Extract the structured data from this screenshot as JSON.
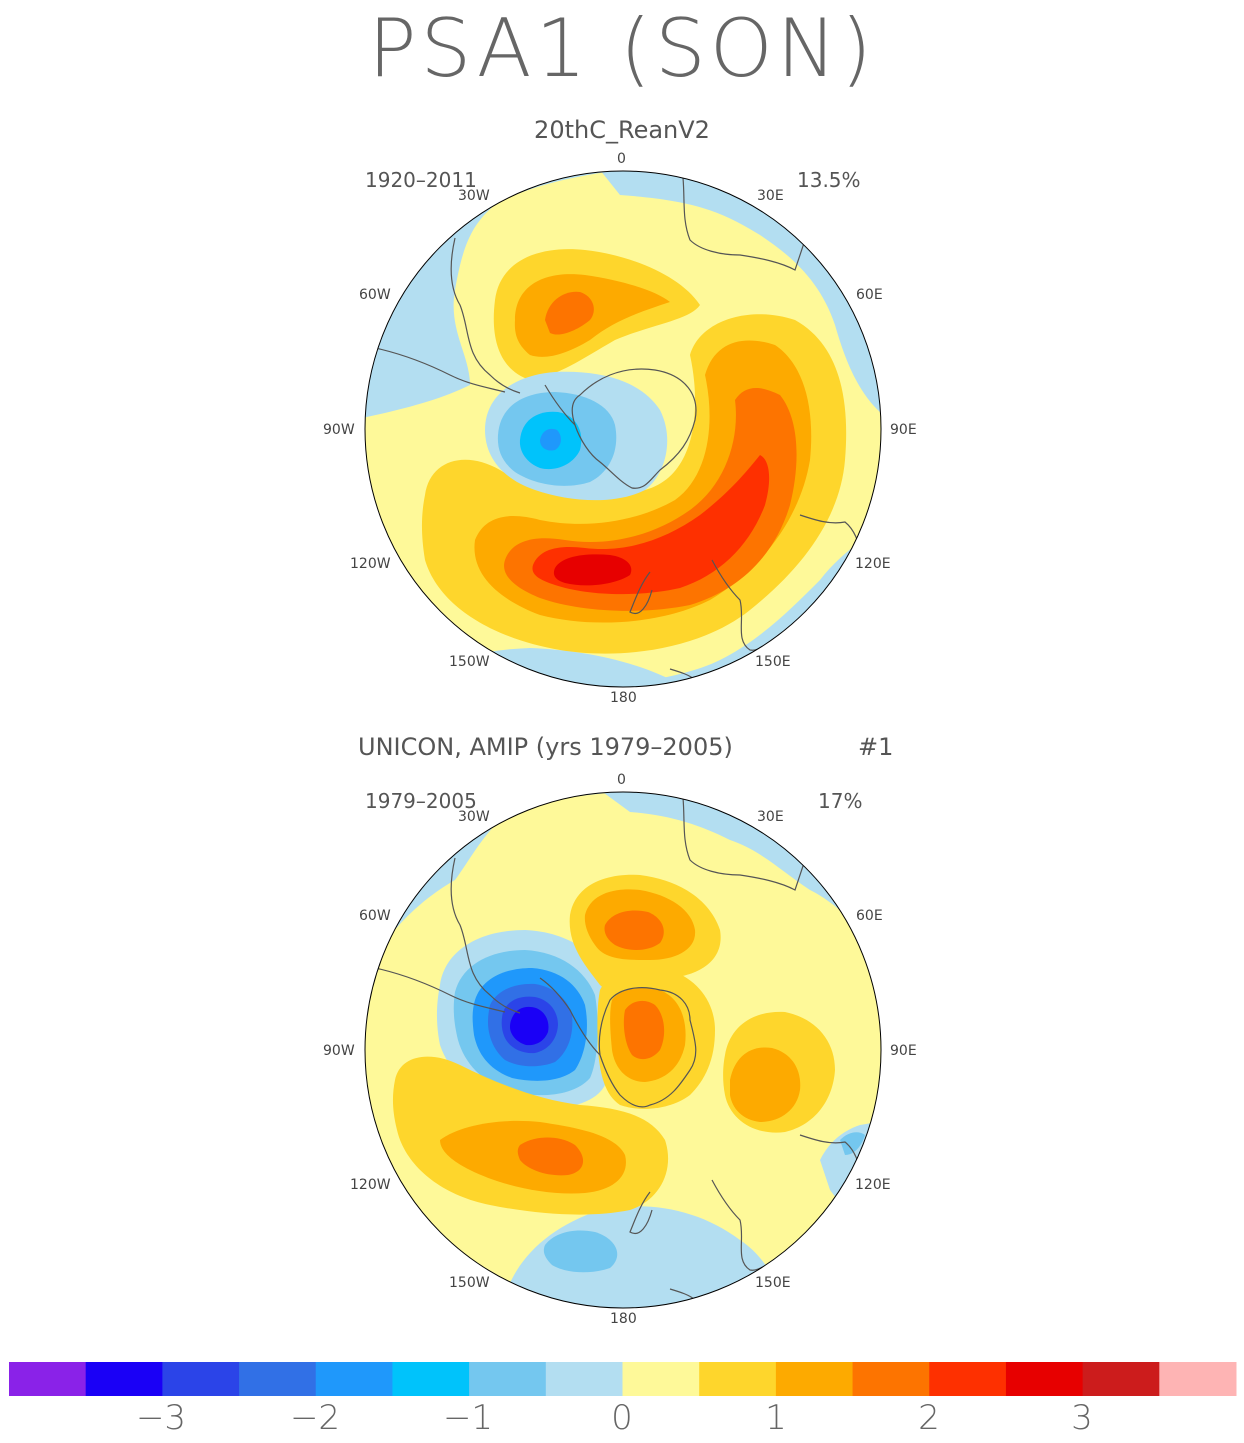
{
  "title": "PSA1 (SON)",
  "colors": {
    "levels": [
      "#8a22e8",
      "#1a00f6",
      "#2b44e8",
      "#3170e6",
      "#1f98fb",
      "#00c3fb",
      "#74c7ef",
      "#b3def1",
      "#fef999",
      "#fed62c",
      "#fdaa00",
      "#fd7400",
      "#fe3000",
      "#e70000",
      "#cc1c1c",
      "#feb4b4"
    ],
    "coast": "#555555"
  },
  "colorbar": {
    "labels": [
      "−3",
      "−2",
      "−1",
      "0",
      "1",
      "2",
      "3"
    ]
  },
  "panels": [
    {
      "subtitle": "20thC_ReanV2",
      "years": "1920–2011",
      "variance": "13.5%",
      "lon_labels": {
        "n": "0",
        "nw": "30W",
        "ne": "30E",
        "wnw": "60W",
        "ene": "60E",
        "w": "90W",
        "e": "90E",
        "wsw": "120W",
        "ese": "120E",
        "sw": "150W",
        "se": "150E",
        "s": "180"
      }
    },
    {
      "subtitle": "UNICON, AMIP (yrs 1979–2005)",
      "ensemble": "#1",
      "years": "1979–2005",
      "variance": "17%",
      "lon_labels": {
        "n": "0",
        "nw": "30W",
        "ne": "30E",
        "wnw": "60W",
        "ene": "60E",
        "w": "90W",
        "e": "90E",
        "wsw": "120W",
        "ese": "120E",
        "sw": "150W",
        "se": "150E",
        "s": "180"
      }
    }
  ]
}
